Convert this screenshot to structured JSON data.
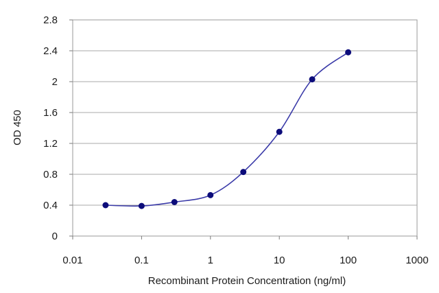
{
  "chart_data": {
    "type": "line",
    "title": "",
    "xlabel": "Recombinant Protein Concentration (ng/ml)",
    "ylabel": "OD 450",
    "x_scale": "log",
    "xlim": [
      0.01,
      1000
    ],
    "ylim": [
      0,
      2.8
    ],
    "x_ticks": [
      "0.01",
      "0.1",
      "1",
      "10",
      "100",
      "1000"
    ],
    "y_ticks": [
      "0",
      "0.4",
      "0.8",
      "1.2",
      "1.6",
      "2",
      "2.4",
      "2.8"
    ],
    "grid": "horizontal",
    "line_color": "#3a3aa8",
    "marker_color": "#0c0c7a",
    "series": [
      {
        "x": [
          0.03,
          0.1,
          0.3,
          1,
          3,
          10,
          30,
          100
        ],
        "y": [
          0.4,
          0.39,
          0.44,
          0.53,
          0.83,
          1.35,
          2.03,
          2.38
        ]
      }
    ]
  }
}
